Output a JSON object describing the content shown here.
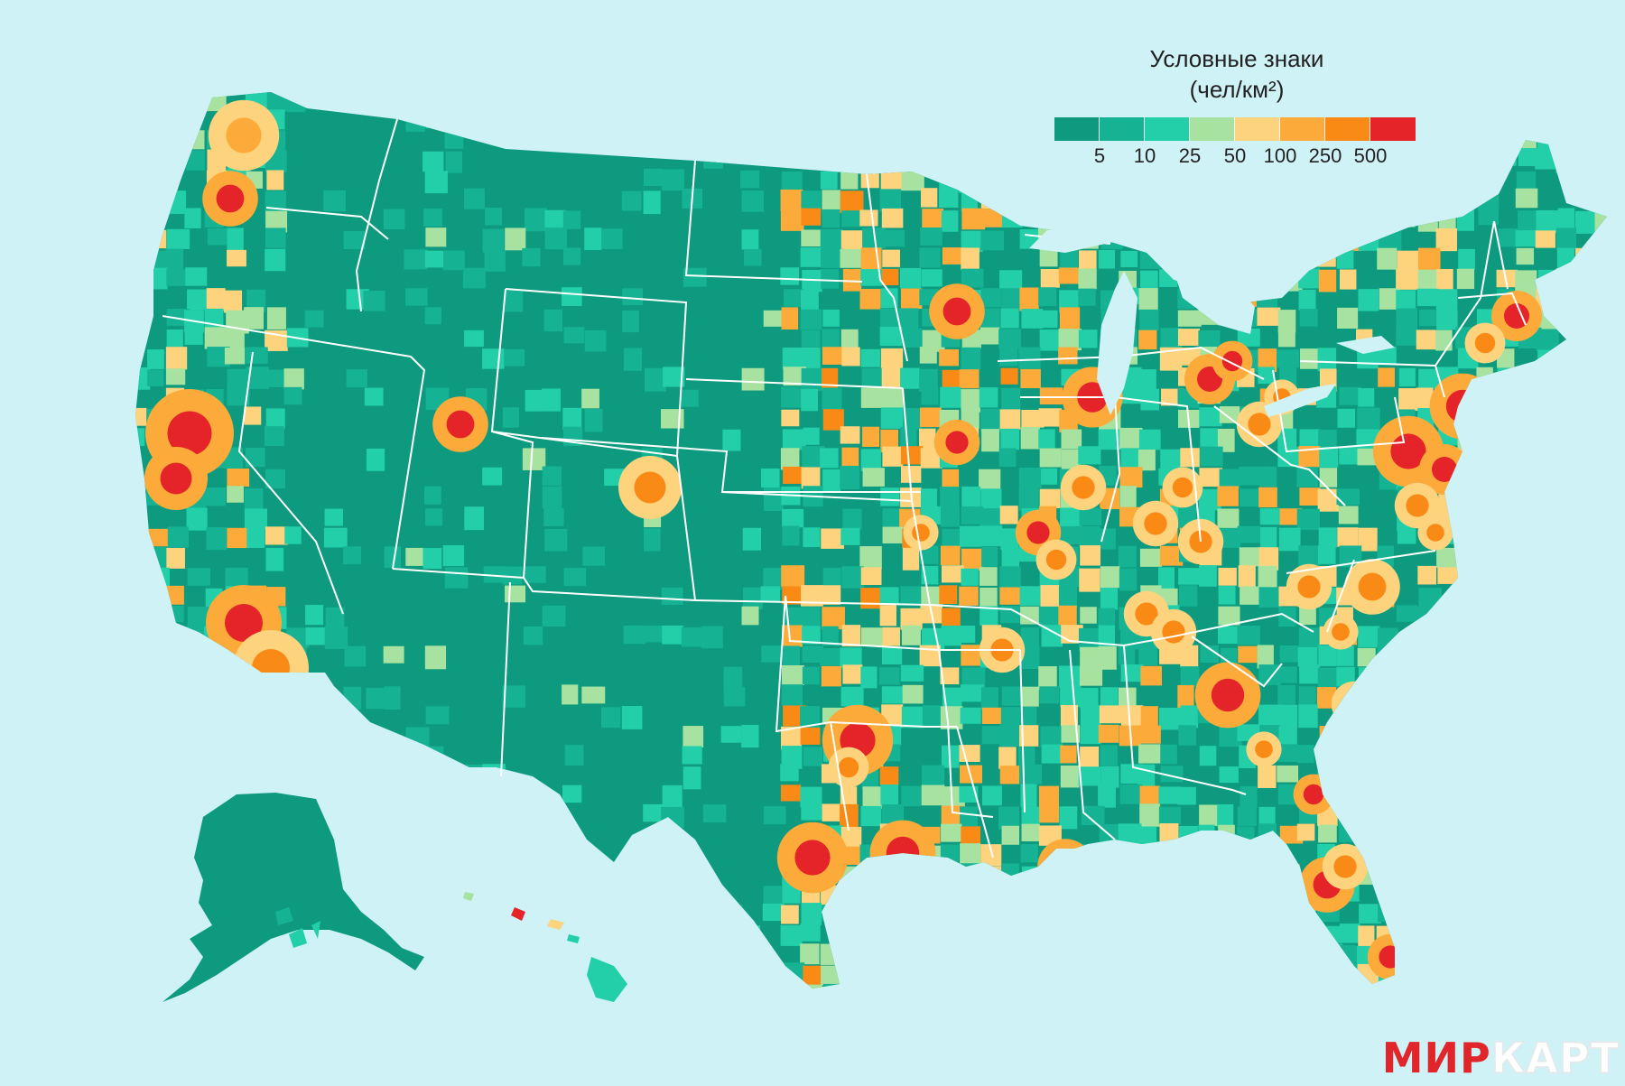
{
  "legend": {
    "title": "Условные знаки",
    "unit": "(чел/км²)",
    "classes": [
      {
        "color": "#0d9a7e"
      },
      {
        "color": "#15b394"
      },
      {
        "color": "#22cfa8"
      },
      {
        "color": "#a7e2a0"
      },
      {
        "color": "#fdd37e"
      },
      {
        "color": "#fcab3a"
      },
      {
        "color": "#f98a15"
      },
      {
        "color": "#e5242a"
      }
    ],
    "breaks": [
      "5",
      "10",
      "25",
      "50",
      "100",
      "250",
      "500"
    ]
  },
  "brand": {
    "part1": "МИР",
    "part2": "КАРТ"
  },
  "colors": {
    "water": "#cff2f7",
    "border": "#ffffff"
  }
}
